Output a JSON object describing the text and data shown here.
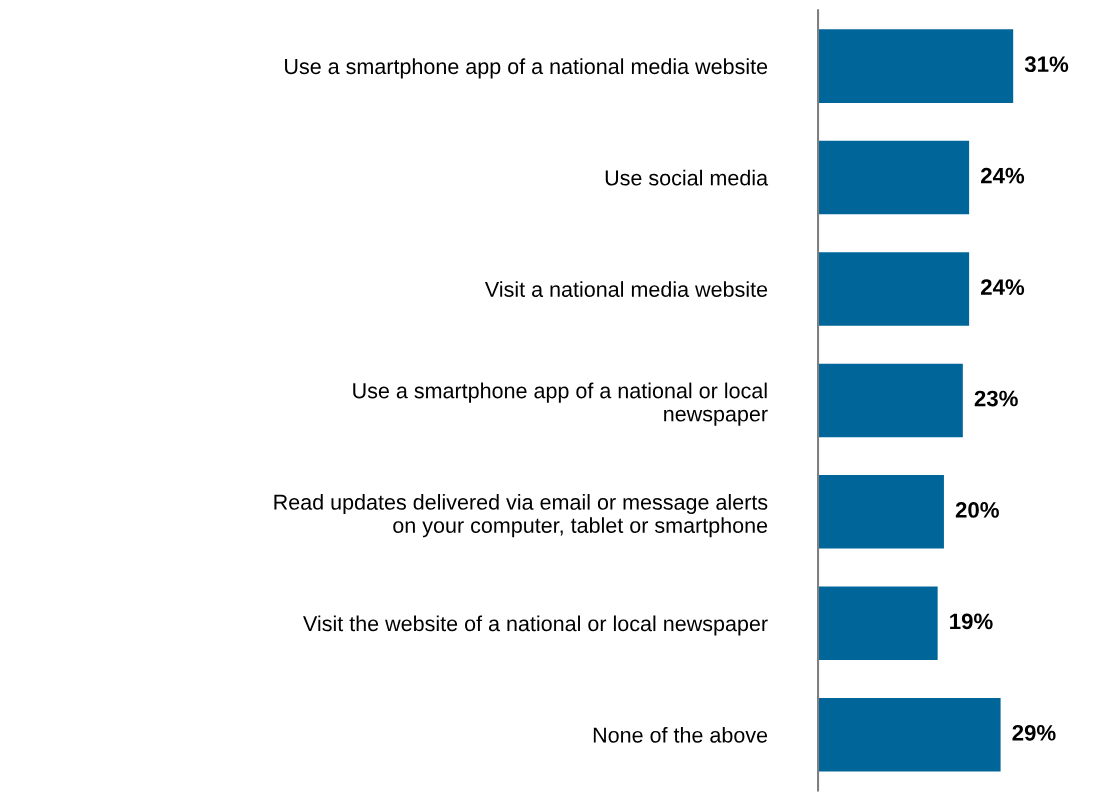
{
  "chart_data": {
    "type": "bar",
    "orientation": "horizontal",
    "categories": [
      "Use a smartphone app of a national media website",
      "Use social media",
      "Visit a national media website",
      "Use a smartphone app of a national or local\nnewspaper",
      "Read updates delivered via email or message alerts\non your computer, tablet or smartphone",
      "Visit the website of a national or local newspaper",
      "None of the above"
    ],
    "values": [
      31,
      24,
      24,
      23,
      20,
      19,
      29
    ],
    "value_labels": [
      "31%",
      "24%",
      "24%",
      "23%",
      "20%",
      "19%",
      "29%"
    ],
    "color": "#006699",
    "grid": false,
    "legend": false
  }
}
